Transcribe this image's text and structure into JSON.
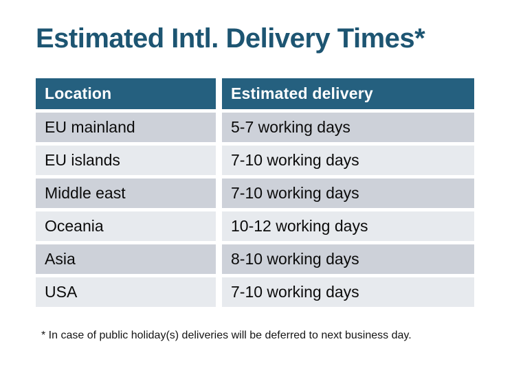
{
  "title": "Estimated Intl. Delivery Times*",
  "footnote": "* In case of public holiday(s) deliveries will be deferred to next business day.",
  "table": {
    "headers": {
      "location": "Location",
      "delivery": "Estimated delivery"
    },
    "rows": [
      {
        "location": "EU mainland",
        "delivery": "5-7 working days"
      },
      {
        "location": "EU islands",
        "delivery": "7-10 working days"
      },
      {
        "location": "Middle east",
        "delivery": "7-10 working days"
      },
      {
        "location": "Oceania",
        "delivery": "10-12 working days"
      },
      {
        "location": "Asia",
        "delivery": "8-10 working days"
      },
      {
        "location": "USA",
        "delivery": "7-10 working days"
      }
    ]
  },
  "colors": {
    "title_text": "#1d5572",
    "header_bg": "#25607f",
    "header_text": "#ffffff",
    "row_odd_bg": "#cdd1d9",
    "row_even_bg": "#e7eaee",
    "body_text": "#0b0b0b",
    "page_bg": "#ffffff"
  },
  "chart_data": {
    "type": "table",
    "title": "Estimated Intl. Delivery Times*",
    "columns": [
      "Location",
      "Estimated delivery"
    ],
    "rows": [
      [
        "EU mainland",
        "5-7 working days"
      ],
      [
        "EU islands",
        "7-10 working days"
      ],
      [
        "Middle east",
        "7-10 working days"
      ],
      [
        "Oceania",
        "10-12 working days"
      ],
      [
        "Asia",
        "8-10 working days"
      ],
      [
        "USA",
        "7-10 working days"
      ]
    ],
    "footnote": "* In case of public holiday(s) deliveries will be deferred to next business day."
  }
}
